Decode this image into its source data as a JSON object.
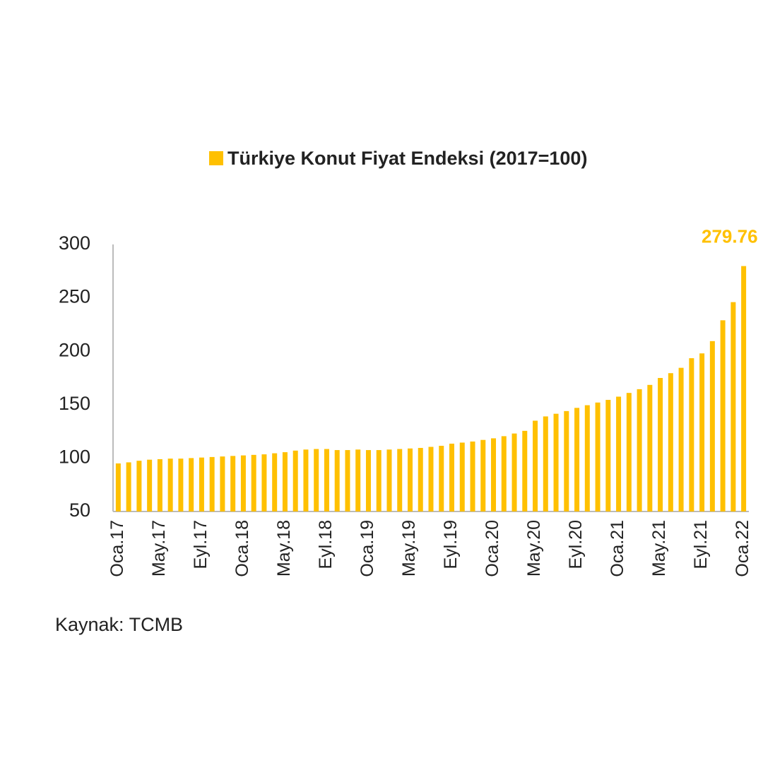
{
  "chart_data": {
    "type": "bar",
    "series": [
      {
        "name": "Türkiye Konut Fiyat Endeksi (2017=100)",
        "color": "#FFC000",
        "values": [
          95,
          96,
          97.5,
          98.5,
          99,
          99.5,
          99.5,
          100,
          100.5,
          101,
          101.5,
          102,
          102.5,
          103,
          103.5,
          104.5,
          105.5,
          107,
          108,
          108.5,
          108.5,
          107.5,
          107.5,
          108,
          107.5,
          107.5,
          108,
          108.5,
          109,
          109.5,
          110.5,
          111.5,
          113.5,
          114.5,
          115.5,
          117,
          118.5,
          120.5,
          123,
          125.5,
          135,
          139,
          141.5,
          144,
          147,
          149.5,
          152,
          154.5,
          157.5,
          161,
          164.5,
          168.5,
          175,
          179.5,
          184.5,
          193.5,
          198,
          209.5,
          229,
          246,
          279.76
        ]
      }
    ],
    "categories": [
      "Oca.17",
      null,
      null,
      null,
      "May.17",
      null,
      null,
      null,
      "Eyl.17",
      null,
      null,
      null,
      "Oca.18",
      null,
      null,
      null,
      "May.18",
      null,
      null,
      null,
      "Eyl.18",
      null,
      null,
      null,
      "Oca.19",
      null,
      null,
      null,
      "May.19",
      null,
      null,
      null,
      "Eyl.19",
      null,
      null,
      null,
      "Oca.20",
      null,
      null,
      null,
      "May.20",
      null,
      null,
      null,
      "Eyl.20",
      null,
      null,
      null,
      "Oca.21",
      null,
      null,
      null,
      "May.21",
      null,
      null,
      null,
      "Eyl.21",
      null,
      null,
      null,
      "Oca.22"
    ],
    "ylim": [
      50,
      300
    ],
    "yticks": [
      50,
      100,
      150,
      200,
      250,
      300
    ],
    "source": "Kaynak: TCMB"
  }
}
